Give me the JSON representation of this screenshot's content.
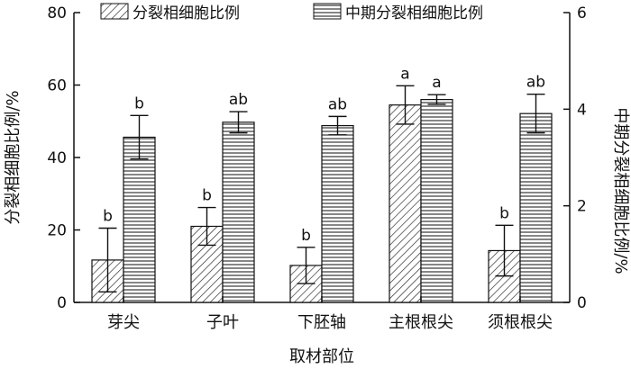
{
  "chart_data": {
    "type": "bar",
    "xlabel": "取材部位",
    "ylabel_left": "分裂相细胞比例/%",
    "ylabel_right": "中期分裂相细胞比例/%",
    "categories": [
      "芽尖",
      "子叶",
      "下胚轴",
      "主根根尖",
      "须根根尖"
    ],
    "left_axis": {
      "ylim": [
        0,
        80
      ],
      "ticks": [
        "0",
        "20",
        "40",
        "60",
        "80"
      ]
    },
    "right_axis": {
      "ylim": [
        0,
        6
      ],
      "ticks": [
        "0",
        "2",
        "4",
        "6"
      ]
    },
    "series": [
      {
        "name": "分裂相细胞比例",
        "axis": "left",
        "pattern": "diagonal-hatch",
        "values": [
          11.7,
          21,
          10.2,
          54.5,
          14.3
        ],
        "errors": [
          8.8,
          5.2,
          5.0,
          5.3,
          7.0
        ],
        "letters": [
          "b",
          "b",
          "b",
          "a",
          "b"
        ]
      },
      {
        "name": "中期分裂相细胞比例",
        "axis": "right",
        "pattern": "horizontal-hatch",
        "values": [
          3.42,
          3.73,
          3.66,
          4.2,
          3.91
        ],
        "errors": [
          0.45,
          0.22,
          0.19,
          0.1,
          0.4
        ],
        "letters": [
          "b",
          "ab",
          "ab",
          "a",
          "ab"
        ]
      }
    ],
    "grid": false,
    "legend_position": "top"
  }
}
